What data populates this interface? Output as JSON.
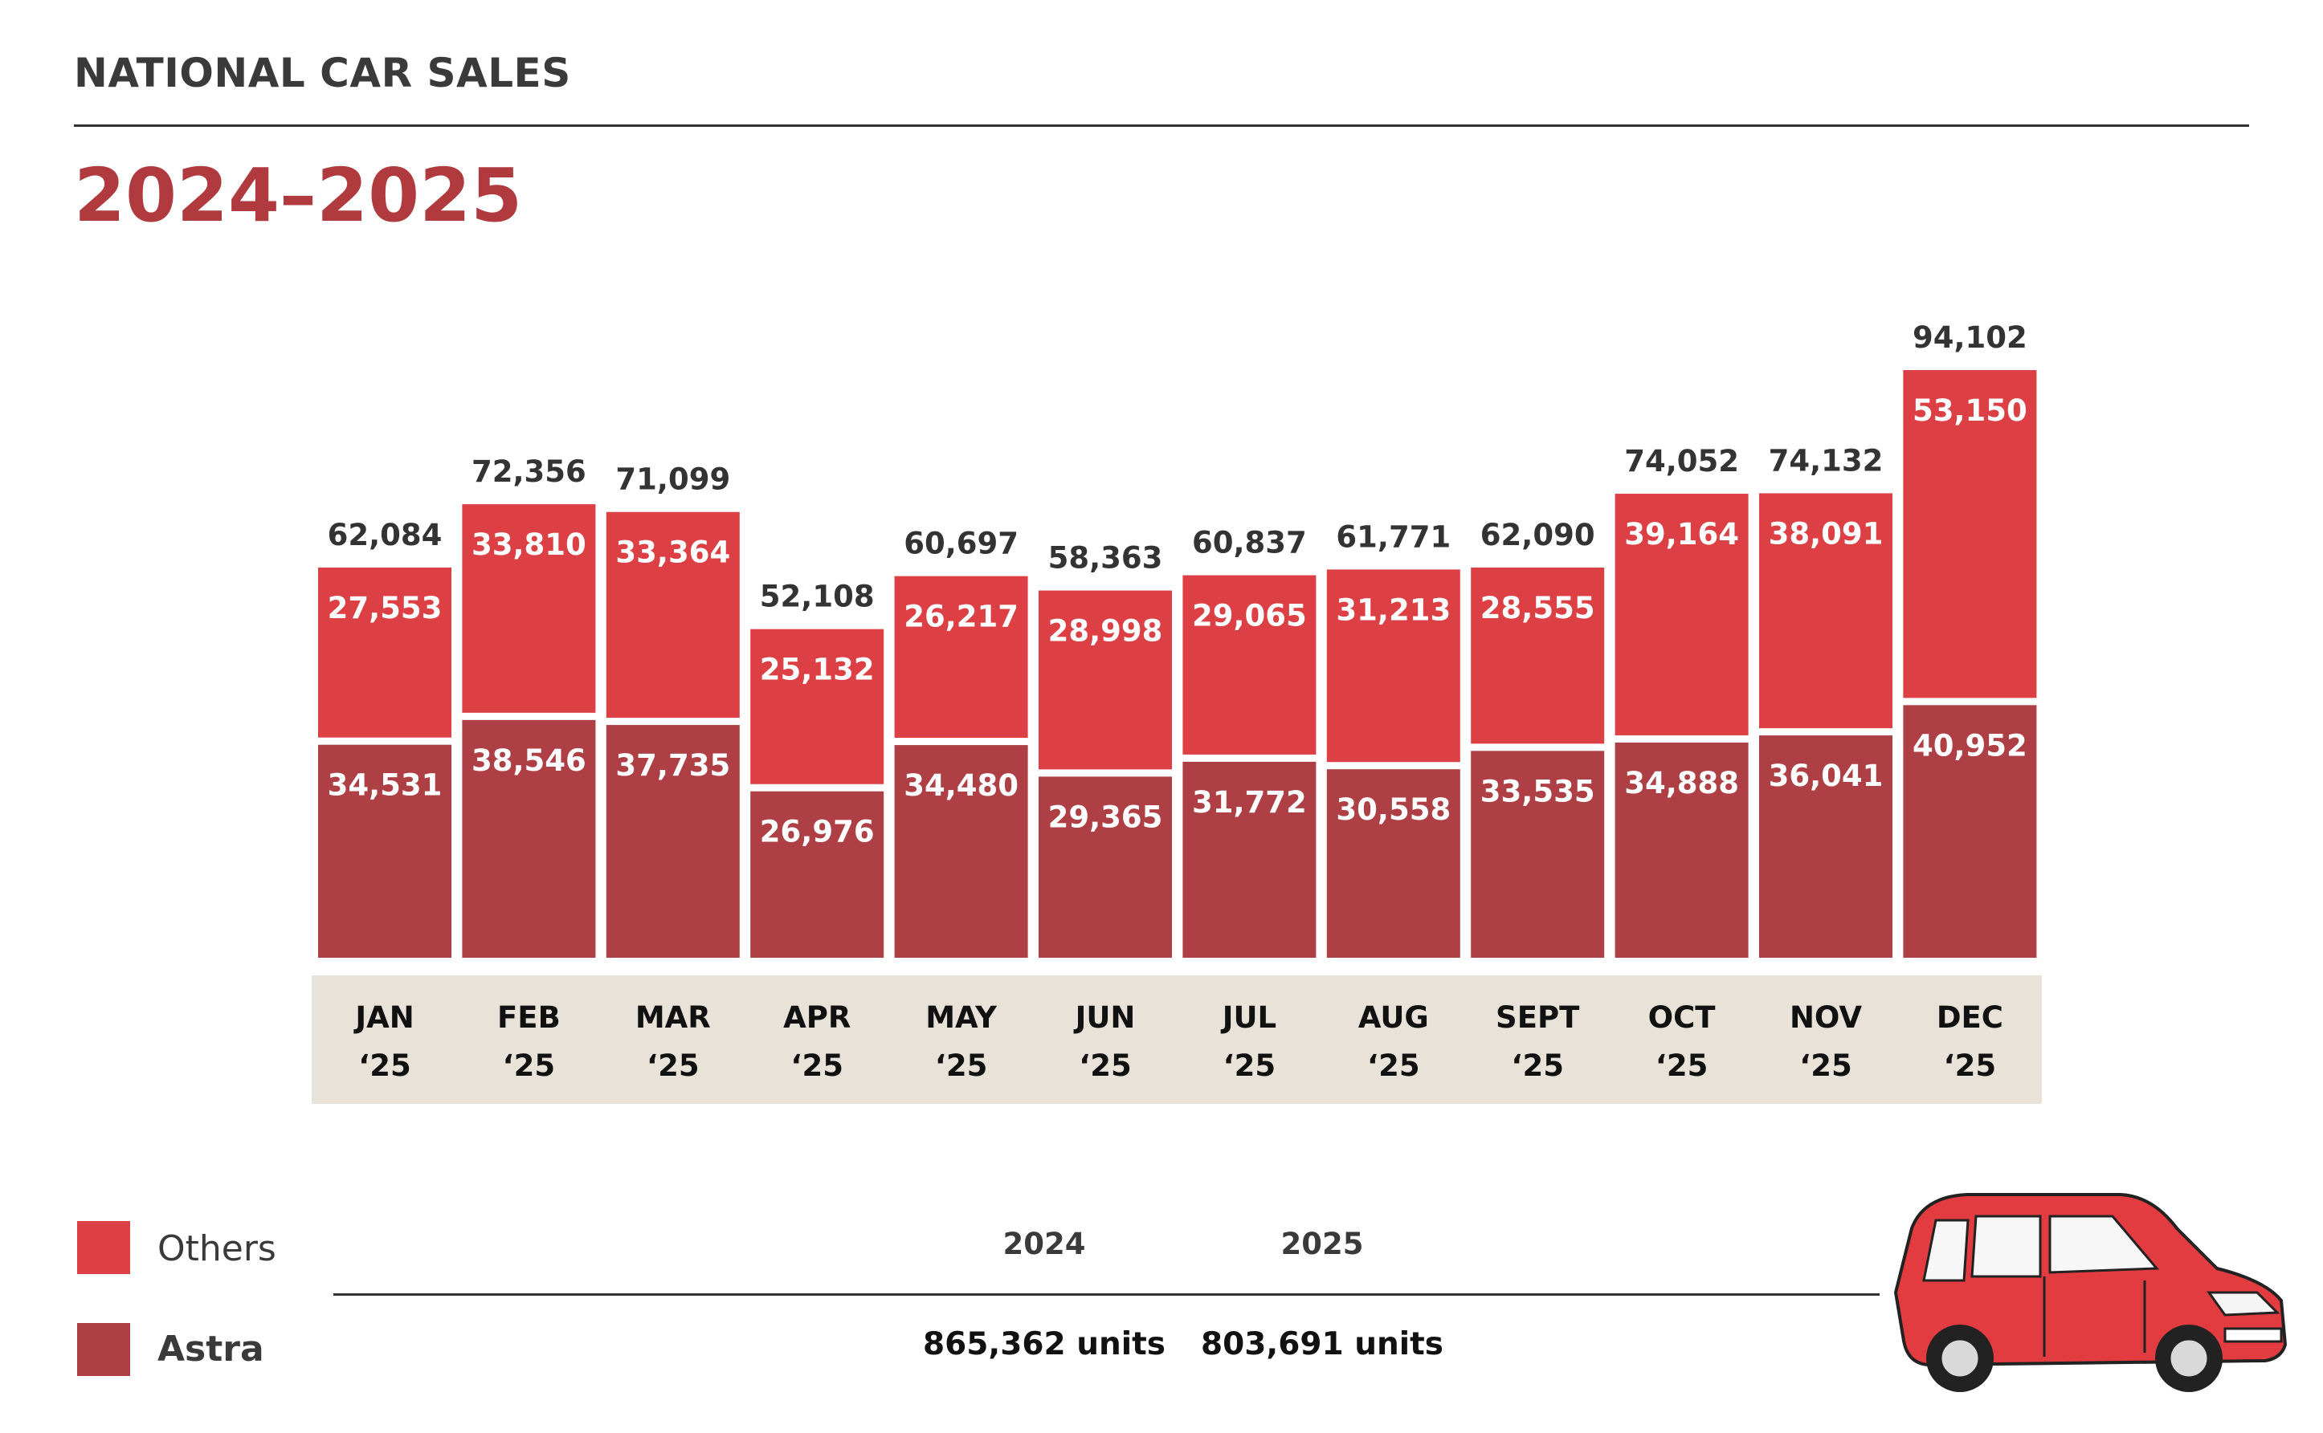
{
  "header": {
    "title": "NATIONAL CAR SALES",
    "subtitle": "2024–2025"
  },
  "colors": {
    "others": "#dc4044",
    "astra": "#ae3f45",
    "category_band": "#e8e2d8",
    "title_accent": "#b03a3e"
  },
  "chart_data": {
    "type": "bar",
    "stacked": true,
    "categories": [
      [
        "JAN",
        "‘25"
      ],
      [
        "FEB",
        "‘25"
      ],
      [
        "MAR",
        "‘25"
      ],
      [
        "APR",
        "‘25"
      ],
      [
        "MAY",
        "‘25"
      ],
      [
        "JUN",
        "‘25"
      ],
      [
        "JUL",
        "‘25"
      ],
      [
        "AUG",
        "‘25"
      ],
      [
        "SEPT",
        "‘25"
      ],
      [
        "OCT",
        "‘25"
      ],
      [
        "NOV",
        "‘25"
      ],
      [
        "DEC",
        "‘25"
      ]
    ],
    "series": [
      {
        "name": "Astra",
        "values": [
          34531,
          38546,
          37735,
          26976,
          34480,
          29365,
          31772,
          30558,
          33535,
          34888,
          36041,
          40952
        ]
      },
      {
        "name": "Others",
        "values": [
          27553,
          33810,
          33364,
          25132,
          26217,
          28998,
          29065,
          31213,
          28555,
          39164,
          38091,
          53150
        ]
      }
    ],
    "totals": [
      62084,
      72356,
      71099,
      52108,
      60697,
      58363,
      60837,
      61771,
      62090,
      74052,
      74132,
      94102
    ],
    "ylim": [
      0,
      94102
    ],
    "legend_position": "bottom-left",
    "grid": false
  },
  "legend": {
    "others": "Others",
    "astra": "Astra"
  },
  "summary": {
    "year_a": "2024",
    "year_b": "2025",
    "units_a": "865,362 units",
    "units_b": "803,691 units"
  }
}
